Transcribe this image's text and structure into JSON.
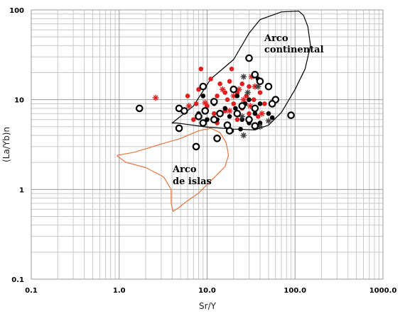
{
  "chart_data": {
    "type": "scatter",
    "title": "",
    "xlabel": "Sr/Y",
    "ylabel": "(La/Yb)n",
    "xscale": "log",
    "yscale": "log",
    "xlim": [
      0.1,
      1000
    ],
    "ylim": [
      0.1,
      100
    ],
    "grid": true,
    "x_tick_labels": [
      "0.1",
      "1.0",
      "10.0",
      "100.0",
      "1000.0"
    ],
    "y_tick_labels": [
      "0.1",
      "1",
      "10",
      "100"
    ],
    "regions": [
      {
        "name": "Arco continental",
        "color": "#000000",
        "outline": [
          [
            4.0,
            5.5
          ],
          [
            7,
            8.5
          ],
          [
            11,
            17
          ],
          [
            20,
            28
          ],
          [
            30,
            55
          ],
          [
            40,
            78
          ],
          [
            70,
            95
          ],
          [
            110,
            97
          ],
          [
            125,
            87
          ],
          [
            140,
            65
          ],
          [
            150,
            40
          ],
          [
            130,
            22
          ],
          [
            100,
            13
          ],
          [
            70,
            7.2
          ],
          [
            50,
            5.2
          ],
          [
            35,
            4.6
          ],
          [
            20,
            4.7
          ],
          [
            10,
            4.95
          ],
          [
            4.5,
            5.5
          ]
        ]
      },
      {
        "name": "Arco de islas",
        "color": "#e8733c",
        "outline": [
          [
            0.95,
            2.4
          ],
          [
            1.5,
            2.6
          ],
          [
            3.0,
            3.2
          ],
          [
            5.0,
            3.7
          ],
          [
            8.0,
            4.5
          ],
          [
            11,
            4.8
          ],
          [
            14,
            4.3
          ],
          [
            16.5,
            3.3
          ],
          [
            17.5,
            2.4
          ],
          [
            16,
            1.8
          ],
          [
            12,
            1.35
          ],
          [
            8,
            0.91
          ],
          [
            6,
            0.75
          ],
          [
            4.7,
            0.62
          ],
          [
            4.1,
            0.57
          ],
          [
            3.9,
            0.7
          ],
          [
            3.9,
            1.0
          ],
          [
            3.2,
            1.38
          ],
          [
            2.0,
            1.75
          ],
          [
            1.2,
            2.0
          ],
          [
            0.95,
            2.35
          ]
        ]
      }
    ],
    "series": [
      {
        "marker": "filled-circle",
        "color": "#e02020",
        "points": [
          [
            8.5,
            22
          ],
          [
            19,
            22
          ],
          [
            11,
            17
          ],
          [
            18,
            16
          ],
          [
            25,
            15
          ],
          [
            14,
            15
          ],
          [
            8,
            13
          ],
          [
            30,
            14
          ],
          [
            16,
            12
          ],
          [
            22,
            12
          ],
          [
            40,
            12
          ],
          [
            13,
            11
          ],
          [
            6,
            11
          ],
          [
            28,
            11
          ],
          [
            17,
            10
          ],
          [
            34,
            10
          ],
          [
            7.5,
            9
          ],
          [
            20,
            9
          ],
          [
            45,
            9
          ],
          [
            10,
            8.5
          ],
          [
            25,
            8
          ],
          [
            16,
            7.5
          ],
          [
            12,
            7
          ],
          [
            30,
            7
          ],
          [
            38,
            6.5
          ],
          [
            7,
            6
          ],
          [
            22,
            6
          ],
          [
            13,
            5.5
          ]
        ]
      },
      {
        "marker": "asterisk",
        "color": "#e02020",
        "points": [
          [
            2.6,
            10.5
          ],
          [
            6.2,
            8.5
          ],
          [
            9.5,
            9.2
          ],
          [
            23,
            13
          ],
          [
            26,
            10
          ],
          [
            32,
            18
          ],
          [
            35,
            14
          ],
          [
            15,
            13
          ],
          [
            20,
            11
          ],
          [
            27,
            9
          ],
          [
            31,
            8.5
          ],
          [
            18,
            7.5
          ],
          [
            42,
            7
          ]
        ]
      },
      {
        "marker": "filled-circle",
        "color": "#000000",
        "points": [
          [
            38,
            17
          ],
          [
            9,
            11
          ],
          [
            22,
            11
          ],
          [
            30,
            10
          ],
          [
            12,
            9
          ],
          [
            27,
            9
          ],
          [
            40,
            9
          ],
          [
            16,
            8
          ],
          [
            21,
            8
          ],
          [
            8,
            7
          ],
          [
            35,
            7
          ],
          [
            50,
            7
          ],
          [
            18,
            6.5
          ],
          [
            25,
            6
          ],
          [
            55,
            6.3
          ],
          [
            13,
            6
          ],
          [
            30,
            5.5
          ],
          [
            40,
            5.5
          ],
          [
            24,
            4.7
          ],
          [
            19,
            4.5
          ],
          [
            10,
            6
          ]
        ]
      },
      {
        "marker": "asterisk",
        "color": "#404040",
        "points": [
          [
            26,
            18
          ],
          [
            38,
            14
          ],
          [
            29,
            12
          ],
          [
            25,
            6.5
          ],
          [
            50,
            5.8
          ],
          [
            40,
            5
          ],
          [
            26,
            4
          ]
        ]
      },
      {
        "marker": "open-circle",
        "color": "#000000",
        "points": [
          [
            30,
            29
          ],
          [
            35,
            19
          ],
          [
            40,
            16
          ],
          [
            9,
            14
          ],
          [
            50,
            14
          ],
          [
            20,
            13
          ],
          [
            60,
            10
          ],
          [
            12,
            9.5
          ],
          [
            25,
            8.5
          ],
          [
            55,
            9
          ],
          [
            35,
            8
          ],
          [
            4.8,
            8
          ],
          [
            1.7,
            8
          ],
          [
            9.5,
            7.5
          ],
          [
            5.5,
            7.5
          ],
          [
            22,
            7
          ],
          [
            14,
            7
          ],
          [
            90,
            6.7
          ],
          [
            8,
            6.5
          ],
          [
            30,
            6
          ],
          [
            12,
            6
          ],
          [
            9,
            5.5
          ],
          [
            17,
            5.2
          ],
          [
            35,
            5.1
          ],
          [
            4.8,
            4.8
          ],
          [
            18,
            4.5
          ],
          [
            13,
            3.7
          ],
          [
            7.5,
            3
          ]
        ]
      }
    ]
  }
}
